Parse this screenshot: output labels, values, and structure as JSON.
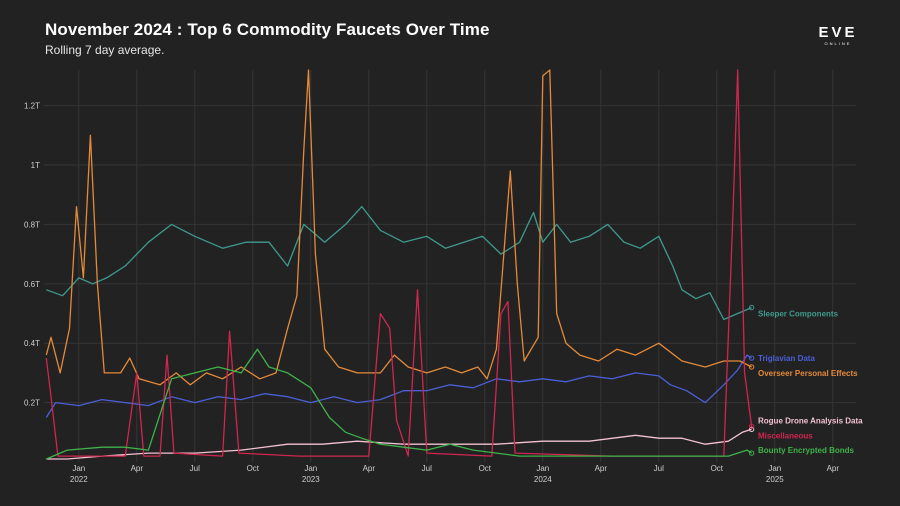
{
  "header": {
    "title": "November 2024 : Top 6 Commodity Faucets Over Time",
    "subtitle": "Rolling 7 day average."
  },
  "logo": {
    "text": "EVE",
    "subtext": "ONLINE"
  },
  "chart_data": {
    "type": "line",
    "title": "November 2024 : Top 6 Commodity Faucets Over Time",
    "subtitle": "Rolling 7 day average.",
    "xlabel": "",
    "ylabel": "",
    "x_range": [
      2021.85,
      2025.35
    ],
    "ylim": [
      0,
      1.32
    ],
    "grid": true,
    "legend_position": "right, inline at line ends",
    "y_ticks": [
      {
        "value": 0.2,
        "label": "0.2T"
      },
      {
        "value": 0.4,
        "label": "0.4T"
      },
      {
        "value": 0.6,
        "label": "0.6T"
      },
      {
        "value": 0.8,
        "label": "0.8T"
      },
      {
        "value": 1.0,
        "label": "1T"
      },
      {
        "value": 1.2,
        "label": "1.2T"
      }
    ],
    "x_ticks": [
      {
        "value": 2022.0,
        "label": "Jan",
        "year": "2022"
      },
      {
        "value": 2022.25,
        "label": "Apr",
        "year": ""
      },
      {
        "value": 2022.5,
        "label": "Jul",
        "year": ""
      },
      {
        "value": 2022.75,
        "label": "Oct",
        "year": ""
      },
      {
        "value": 2023.0,
        "label": "Jan",
        "year": "2023"
      },
      {
        "value": 2023.25,
        "label": "Apr",
        "year": ""
      },
      {
        "value": 2023.5,
        "label": "Jul",
        "year": ""
      },
      {
        "value": 2023.75,
        "label": "Oct",
        "year": ""
      },
      {
        "value": 2024.0,
        "label": "Jan",
        "year": "2024"
      },
      {
        "value": 2024.25,
        "label": "Apr",
        "year": ""
      },
      {
        "value": 2024.5,
        "label": "Jul",
        "year": ""
      },
      {
        "value": 2024.75,
        "label": "Oct",
        "year": ""
      },
      {
        "value": 2025.0,
        "label": "Jan",
        "year": "2025"
      },
      {
        "value": 2025.25,
        "label": "Apr",
        "year": ""
      }
    ],
    "series": [
      {
        "name": "Sleeper Components",
        "color": "#3f9a8e",
        "points": [
          [
            2021.86,
            0.58
          ],
          [
            2021.93,
            0.56
          ],
          [
            2022.0,
            0.62
          ],
          [
            2022.06,
            0.6
          ],
          [
            2022.12,
            0.62
          ],
          [
            2022.2,
            0.66
          ],
          [
            2022.3,
            0.74
          ],
          [
            2022.4,
            0.8
          ],
          [
            2022.5,
            0.76
          ],
          [
            2022.62,
            0.72
          ],
          [
            2022.72,
            0.74
          ],
          [
            2022.82,
            0.74
          ],
          [
            2022.9,
            0.66
          ],
          [
            2022.97,
            0.8
          ],
          [
            2023.06,
            0.74
          ],
          [
            2023.15,
            0.8
          ],
          [
            2023.22,
            0.86
          ],
          [
            2023.3,
            0.78
          ],
          [
            2023.4,
            0.74
          ],
          [
            2023.5,
            0.76
          ],
          [
            2023.58,
            0.72
          ],
          [
            2023.66,
            0.74
          ],
          [
            2023.74,
            0.76
          ],
          [
            2023.82,
            0.7
          ],
          [
            2023.9,
            0.74
          ],
          [
            2023.96,
            0.84
          ],
          [
            2024.0,
            0.74
          ],
          [
            2024.06,
            0.8
          ],
          [
            2024.12,
            0.74
          ],
          [
            2024.2,
            0.76
          ],
          [
            2024.28,
            0.8
          ],
          [
            2024.35,
            0.74
          ],
          [
            2024.42,
            0.72
          ],
          [
            2024.5,
            0.76
          ],
          [
            2024.56,
            0.66
          ],
          [
            2024.6,
            0.58
          ],
          [
            2024.66,
            0.55
          ],
          [
            2024.72,
            0.57
          ],
          [
            2024.78,
            0.48
          ],
          [
            2024.84,
            0.5
          ],
          [
            2024.9,
            0.52
          ]
        ]
      },
      {
        "name": "Triglavian Data",
        "color": "#4a5fd6",
        "points": [
          [
            2021.86,
            0.15
          ],
          [
            2021.9,
            0.2
          ],
          [
            2022.0,
            0.19
          ],
          [
            2022.1,
            0.21
          ],
          [
            2022.2,
            0.2
          ],
          [
            2022.3,
            0.19
          ],
          [
            2022.4,
            0.22
          ],
          [
            2022.5,
            0.2
          ],
          [
            2022.6,
            0.22
          ],
          [
            2022.7,
            0.21
          ],
          [
            2022.8,
            0.23
          ],
          [
            2022.9,
            0.22
          ],
          [
            2023.0,
            0.2
          ],
          [
            2023.1,
            0.22
          ],
          [
            2023.2,
            0.2
          ],
          [
            2023.3,
            0.21
          ],
          [
            2023.4,
            0.24
          ],
          [
            2023.5,
            0.24
          ],
          [
            2023.6,
            0.26
          ],
          [
            2023.7,
            0.25
          ],
          [
            2023.8,
            0.28
          ],
          [
            2023.9,
            0.27
          ],
          [
            2024.0,
            0.28
          ],
          [
            2024.1,
            0.27
          ],
          [
            2024.2,
            0.29
          ],
          [
            2024.3,
            0.28
          ],
          [
            2024.4,
            0.3
          ],
          [
            2024.5,
            0.29
          ],
          [
            2024.55,
            0.26
          ],
          [
            2024.62,
            0.24
          ],
          [
            2024.7,
            0.2
          ],
          [
            2024.78,
            0.26
          ],
          [
            2024.84,
            0.31
          ],
          [
            2024.88,
            0.36
          ],
          [
            2024.9,
            0.35
          ]
        ]
      },
      {
        "name": "Overseer Personal Effects",
        "color": "#e48a3a",
        "points": [
          [
            2021.86,
            0.36
          ],
          [
            2021.88,
            0.42
          ],
          [
            2021.92,
            0.3
          ],
          [
            2021.96,
            0.45
          ],
          [
            2021.99,
            0.86
          ],
          [
            2022.02,
            0.62
          ],
          [
            2022.05,
            1.1
          ],
          [
            2022.08,
            0.6
          ],
          [
            2022.11,
            0.3
          ],
          [
            2022.18,
            0.3
          ],
          [
            2022.22,
            0.35
          ],
          [
            2022.26,
            0.28
          ],
          [
            2022.35,
            0.26
          ],
          [
            2022.42,
            0.3
          ],
          [
            2022.48,
            0.26
          ],
          [
            2022.55,
            0.3
          ],
          [
            2022.62,
            0.28
          ],
          [
            2022.7,
            0.32
          ],
          [
            2022.78,
            0.28
          ],
          [
            2022.85,
            0.3
          ],
          [
            2022.9,
            0.45
          ],
          [
            2022.94,
            0.56
          ],
          [
            2022.97,
            1.05
          ],
          [
            2022.99,
            1.32
          ],
          [
            2023.02,
            0.7
          ],
          [
            2023.06,
            0.38
          ],
          [
            2023.12,
            0.32
          ],
          [
            2023.2,
            0.3
          ],
          [
            2023.3,
            0.3
          ],
          [
            2023.36,
            0.36
          ],
          [
            2023.42,
            0.32
          ],
          [
            2023.5,
            0.3
          ],
          [
            2023.58,
            0.32
          ],
          [
            2023.65,
            0.3
          ],
          [
            2023.72,
            0.32
          ],
          [
            2023.76,
            0.28
          ],
          [
            2023.8,
            0.38
          ],
          [
            2023.86,
            0.98
          ],
          [
            2023.89,
            0.6
          ],
          [
            2023.92,
            0.34
          ],
          [
            2023.98,
            0.42
          ],
          [
            2024.0,
            1.3
          ],
          [
            2024.03,
            1.32
          ],
          [
            2024.06,
            0.5
          ],
          [
            2024.1,
            0.4
          ],
          [
            2024.16,
            0.36
          ],
          [
            2024.24,
            0.34
          ],
          [
            2024.32,
            0.38
          ],
          [
            2024.4,
            0.36
          ],
          [
            2024.5,
            0.4
          ],
          [
            2024.6,
            0.34
          ],
          [
            2024.7,
            0.32
          ],
          [
            2024.78,
            0.34
          ],
          [
            2024.85,
            0.34
          ],
          [
            2024.9,
            0.32
          ]
        ]
      },
      {
        "name": "Rogue Drone Analysis Data",
        "color": "#f2c2d2",
        "points": [
          [
            2021.86,
            0.01
          ],
          [
            2021.95,
            0.01
          ],
          [
            2022.1,
            0.02
          ],
          [
            2022.3,
            0.03
          ],
          [
            2022.5,
            0.03
          ],
          [
            2022.7,
            0.04
          ],
          [
            2022.9,
            0.06
          ],
          [
            2023.05,
            0.06
          ],
          [
            2023.2,
            0.07
          ],
          [
            2023.4,
            0.06
          ],
          [
            2023.6,
            0.06
          ],
          [
            2023.8,
            0.06
          ],
          [
            2024.0,
            0.07
          ],
          [
            2024.2,
            0.07
          ],
          [
            2024.4,
            0.09
          ],
          [
            2024.5,
            0.08
          ],
          [
            2024.6,
            0.08
          ],
          [
            2024.7,
            0.06
          ],
          [
            2024.8,
            0.07
          ],
          [
            2024.86,
            0.1
          ],
          [
            2024.9,
            0.11
          ]
        ]
      },
      {
        "name": "Miscellaneous",
        "color": "#d02650",
        "points": [
          [
            2021.86,
            0.35
          ],
          [
            2021.88,
            0.22
          ],
          [
            2021.91,
            0.02
          ],
          [
            2022.1,
            0.02
          ],
          [
            2022.2,
            0.02
          ],
          [
            2022.25,
            0.3
          ],
          [
            2022.28,
            0.02
          ],
          [
            2022.35,
            0.02
          ],
          [
            2022.38,
            0.36
          ],
          [
            2022.41,
            0.03
          ],
          [
            2022.62,
            0.02
          ],
          [
            2022.65,
            0.44
          ],
          [
            2022.69,
            0.03
          ],
          [
            2022.95,
            0.02
          ],
          [
            2023.25,
            0.02
          ],
          [
            2023.3,
            0.5
          ],
          [
            2023.34,
            0.45
          ],
          [
            2023.37,
            0.14
          ],
          [
            2023.42,
            0.02
          ],
          [
            2023.46,
            0.58
          ],
          [
            2023.5,
            0.03
          ],
          [
            2023.78,
            0.02
          ],
          [
            2023.82,
            0.5
          ],
          [
            2023.85,
            0.54
          ],
          [
            2023.88,
            0.03
          ],
          [
            2024.3,
            0.02
          ],
          [
            2024.5,
            0.02
          ],
          [
            2024.78,
            0.02
          ],
          [
            2024.82,
            0.84
          ],
          [
            2024.84,
            1.32
          ],
          [
            2024.87,
            0.3
          ],
          [
            2024.9,
            0.12
          ]
        ]
      },
      {
        "name": "Bounty Encrypted Bonds",
        "color": "#3fb24a",
        "points": [
          [
            2021.86,
            0.01
          ],
          [
            2021.95,
            0.04
          ],
          [
            2022.1,
            0.05
          ],
          [
            2022.2,
            0.05
          ],
          [
            2022.3,
            0.04
          ],
          [
            2022.4,
            0.28
          ],
          [
            2022.5,
            0.3
          ],
          [
            2022.6,
            0.32
          ],
          [
            2022.7,
            0.3
          ],
          [
            2022.77,
            0.38
          ],
          [
            2022.82,
            0.32
          ],
          [
            2022.9,
            0.3
          ],
          [
            2023.0,
            0.25
          ],
          [
            2023.08,
            0.15
          ],
          [
            2023.15,
            0.1
          ],
          [
            2023.22,
            0.08
          ],
          [
            2023.3,
            0.06
          ],
          [
            2023.4,
            0.05
          ],
          [
            2023.5,
            0.04
          ],
          [
            2023.6,
            0.06
          ],
          [
            2023.7,
            0.04
          ],
          [
            2023.8,
            0.03
          ],
          [
            2023.9,
            0.02
          ],
          [
            2024.0,
            0.02
          ],
          [
            2024.2,
            0.02
          ],
          [
            2024.4,
            0.02
          ],
          [
            2024.6,
            0.02
          ],
          [
            2024.8,
            0.02
          ],
          [
            2024.88,
            0.04
          ],
          [
            2024.9,
            0.03
          ]
        ]
      }
    ]
  }
}
